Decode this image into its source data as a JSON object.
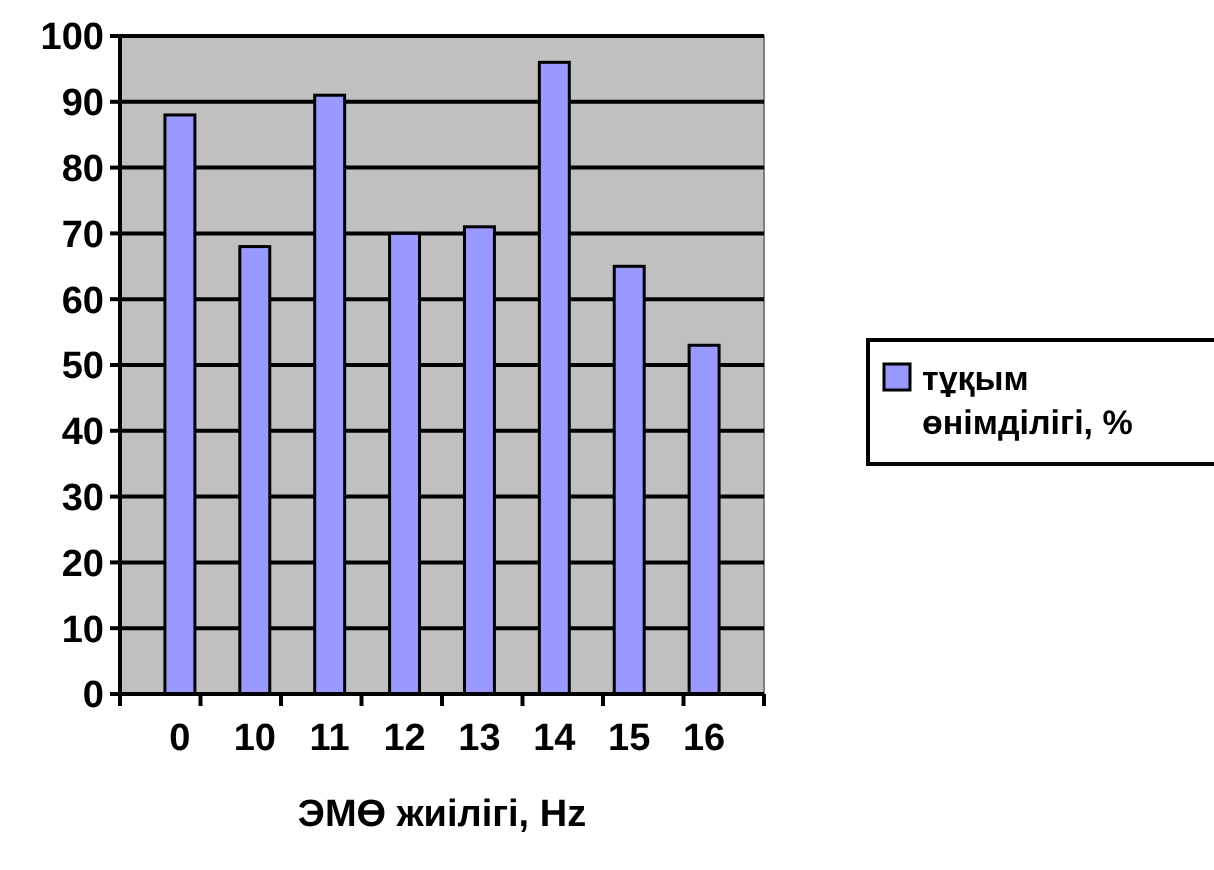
{
  "chart_data": {
    "type": "bar",
    "xlabel": "ЭМӨ жиілігі, Hz",
    "categories": [
      "0",
      "10",
      "11",
      "12",
      "13",
      "14",
      "15",
      "16"
    ],
    "series": [
      {
        "name": "тұқым өнімділігі, %",
        "color": "#9999ff",
        "values": [
          88,
          68,
          91,
          70,
          71,
          96,
          65,
          53
        ]
      }
    ],
    "ylim": [
      0,
      100
    ],
    "yticks": [
      0,
      10,
      20,
      30,
      40,
      50,
      60,
      70,
      80,
      90,
      100
    ],
    "grid": "y",
    "legend": "right"
  }
}
